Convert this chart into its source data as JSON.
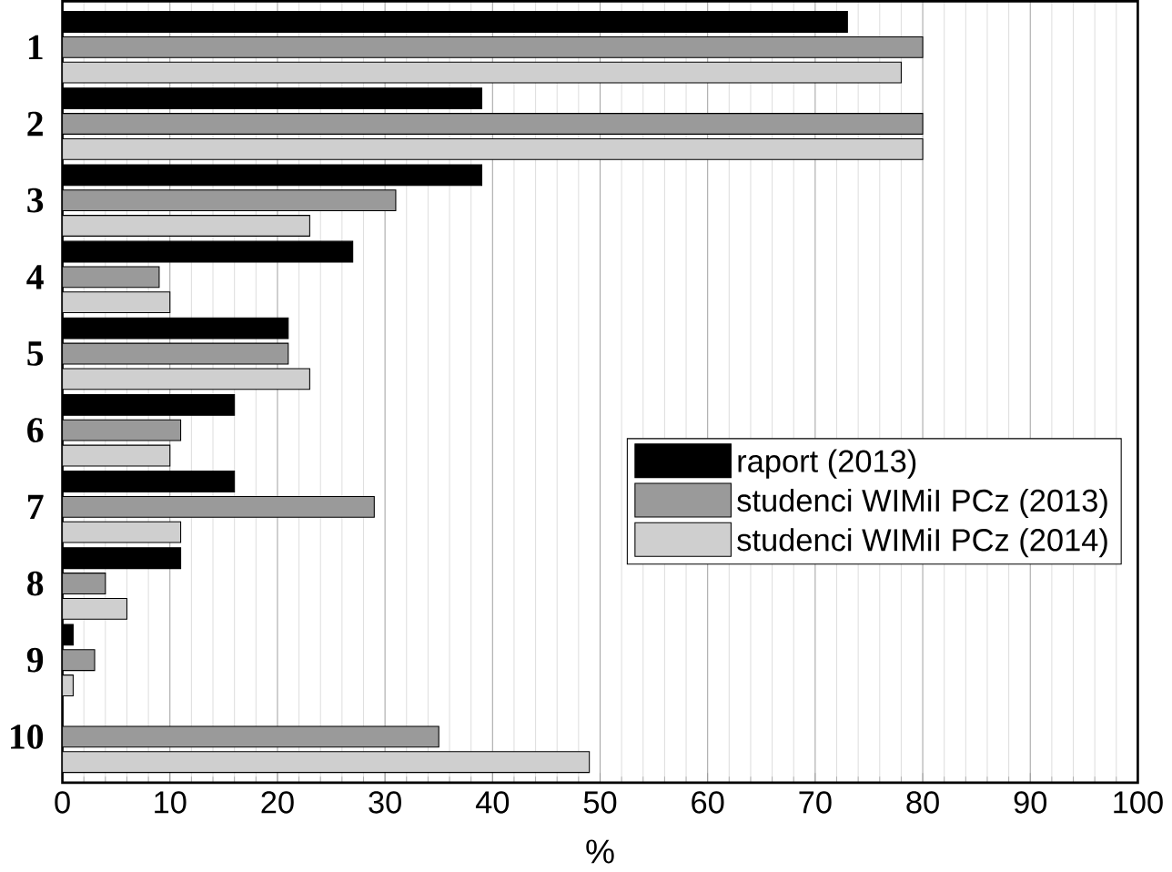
{
  "chart_data": {
    "type": "bar",
    "orientation": "horizontal",
    "xlabel": "%",
    "categories": [
      "1",
      "2",
      "3",
      "4",
      "5",
      "6",
      "7",
      "8",
      "9",
      "10"
    ],
    "series": [
      {
        "name": "raport (2013)",
        "color": "#000000",
        "values": [
          73,
          39,
          39,
          27,
          21,
          16,
          16,
          11,
          1,
          0
        ]
      },
      {
        "name": "studenci WIMiI PCz (2013)",
        "color": "#9a9a9a",
        "values": [
          80,
          80,
          31,
          9,
          21,
          11,
          29,
          4,
          3,
          35
        ]
      },
      {
        "name": "studenci WIMiI PCz (2014)",
        "color": "#cfcfcf",
        "values": [
          78,
          80,
          23,
          10,
          23,
          10,
          11,
          6,
          1,
          49
        ]
      }
    ],
    "xlim": [
      0,
      100
    ],
    "xticks": [
      0,
      10,
      20,
      30,
      40,
      50,
      60,
      70,
      80,
      90,
      100
    ],
    "grid": "x",
    "legend": "right"
  }
}
